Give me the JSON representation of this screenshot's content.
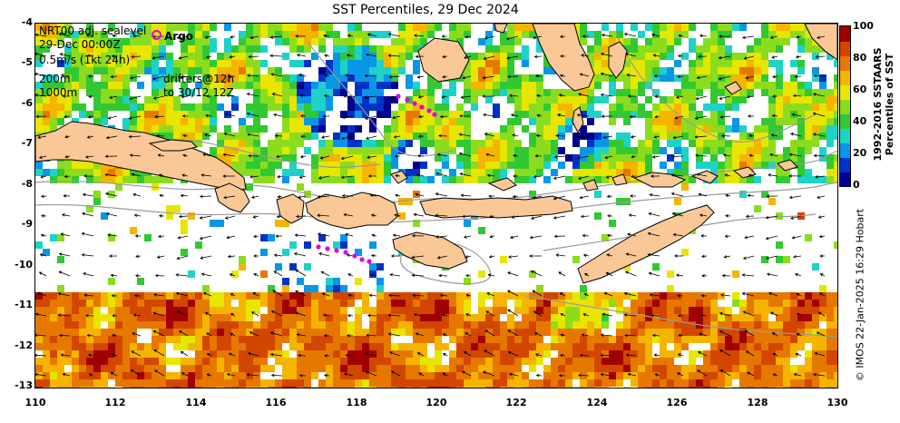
{
  "title": "SST Percentiles, 29 Dec 2024",
  "info": {
    "line1": "NRT00 adj. sealevel",
    "line2": "29-Dec 00:00Z",
    "line3": "0.5m/s (1kt 24h)",
    "line4": "200m",
    "line5": "1000m",
    "drifters1": "drifters@12h",
    "drifters2": "to 30/12 12Z"
  },
  "argo_label": "Argo",
  "x_ticks": [
    "110",
    "112",
    "114",
    "116",
    "118",
    "120",
    "122",
    "124",
    "126",
    "128",
    "130"
  ],
  "y_ticks": [
    "-4",
    "-5",
    "-6",
    "-7",
    "-8",
    "-9",
    "-10",
    "-11",
    "-12",
    "-13"
  ],
  "colorbar": {
    "ticks": [
      "100",
      "80",
      "60",
      "40",
      "20",
      "0"
    ],
    "label_line1": "1992-2016 SSTAARS",
    "label_line2": "Percentiles of SST",
    "colors": [
      "#00008c",
      "#0032c8",
      "#0a96e6",
      "#1ed2c8",
      "#32c832",
      "#8cdc1e",
      "#e6e600",
      "#f5b400",
      "#e67800",
      "#d24600",
      "#a00000"
    ]
  },
  "credit": "© IMOS 22-Jan-2025 16:29 Hobart",
  "colors": {
    "land": "#fac896",
    "argo": "#e100e1",
    "contour": "#999999"
  }
}
